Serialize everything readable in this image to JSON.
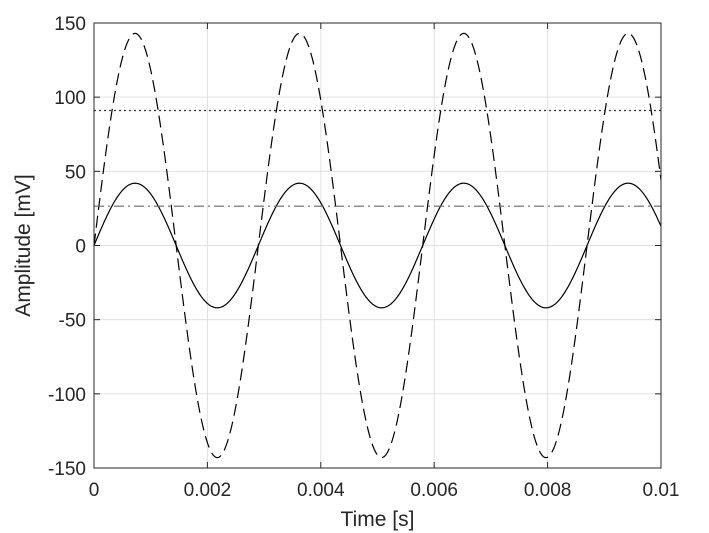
{
  "chart_data": {
    "type": "line",
    "title": "",
    "xlabel": "Time [s]",
    "ylabel": "Amplitude [mV]",
    "xlim": [
      0,
      0.01
    ],
    "ylim": [
      -150,
      150
    ],
    "grid": true,
    "legend": "none",
    "xticks": [
      0,
      0.002,
      0.004,
      0.006,
      0.008,
      0.01
    ],
    "xtick_labels": [
      "0",
      "0.002",
      "0.004",
      "0.006",
      "0.008",
      "0.01"
    ],
    "yticks": [
      -150,
      -100,
      -50,
      0,
      50,
      100,
      150
    ],
    "ytick_labels": [
      "-150",
      "-100",
      "-50",
      "0",
      "50",
      "100",
      "150"
    ],
    "series": [
      {
        "kind": "sine",
        "amplitude": 42,
        "frequency_hz": 345,
        "style": "solid",
        "color": "#000000"
      },
      {
        "kind": "sine",
        "amplitude": 143,
        "frequency_hz": 345,
        "style": "dashed",
        "color": "#000000"
      },
      {
        "kind": "constant",
        "y": 91,
        "style": "dotted",
        "color": "#333333"
      },
      {
        "kind": "constant",
        "y": 26.5,
        "style": "dash-dot",
        "color": "#666666"
      }
    ]
  }
}
